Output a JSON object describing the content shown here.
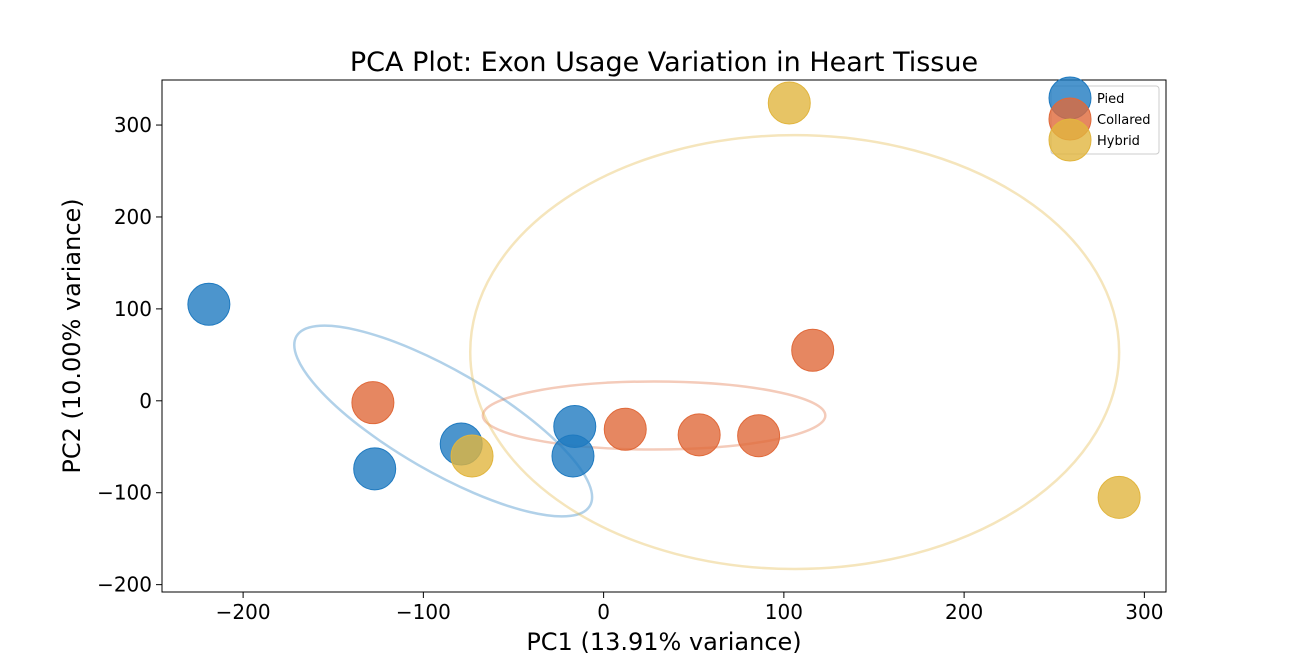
{
  "chart_data": {
    "type": "scatter",
    "title": "PCA Plot: Exon Usage Variation in Heart Tissue",
    "xlabel": "PC1 (13.91% variance)",
    "ylabel": "PC2 (10.00% variance)",
    "xlim": [
      -245,
      312
    ],
    "ylim": [
      -208,
      349
    ],
    "xticks": [
      -200,
      -100,
      0,
      100,
      200,
      300
    ],
    "xtick_labels": [
      "−200",
      "−100",
      "0",
      "100",
      "200",
      "300"
    ],
    "yticks": [
      -200,
      -100,
      0,
      100,
      200,
      300
    ],
    "ytick_labels": [
      "−200",
      "−100",
      "0",
      "100",
      "200",
      "300"
    ],
    "grid": false,
    "legend_position": "top-right",
    "series": [
      {
        "name": "Pied",
        "color": "#1f7ac0",
        "points": [
          [
            -219,
            105
          ],
          [
            -127,
            -74
          ],
          [
            -79,
            -47
          ],
          [
            -16,
            -28
          ],
          [
            -17,
            -60
          ]
        ],
        "ellipse": {
          "center": [
            -89,
            -22
          ],
          "rx": 94,
          "ry": 55,
          "angle": -30
        }
      },
      {
        "name": "Collared",
        "color": "#e0693a",
        "points": [
          [
            -128,
            -2
          ],
          [
            12,
            -31
          ],
          [
            53,
            -37
          ],
          [
            86,
            -38
          ],
          [
            116,
            55
          ]
        ],
        "ellipse": {
          "center": [
            28,
            -16
          ],
          "rx": 95,
          "ry": 37,
          "angle": 0
        }
      },
      {
        "name": "Hybrid",
        "color": "#e1b53e",
        "points": [
          [
            -73,
            -60
          ],
          [
            103,
            324
          ],
          [
            286,
            -105
          ]
        ],
        "ellipse": {
          "center": [
            106,
            53
          ],
          "rx": 180,
          "ry": 236,
          "angle": 0
        }
      }
    ]
  }
}
